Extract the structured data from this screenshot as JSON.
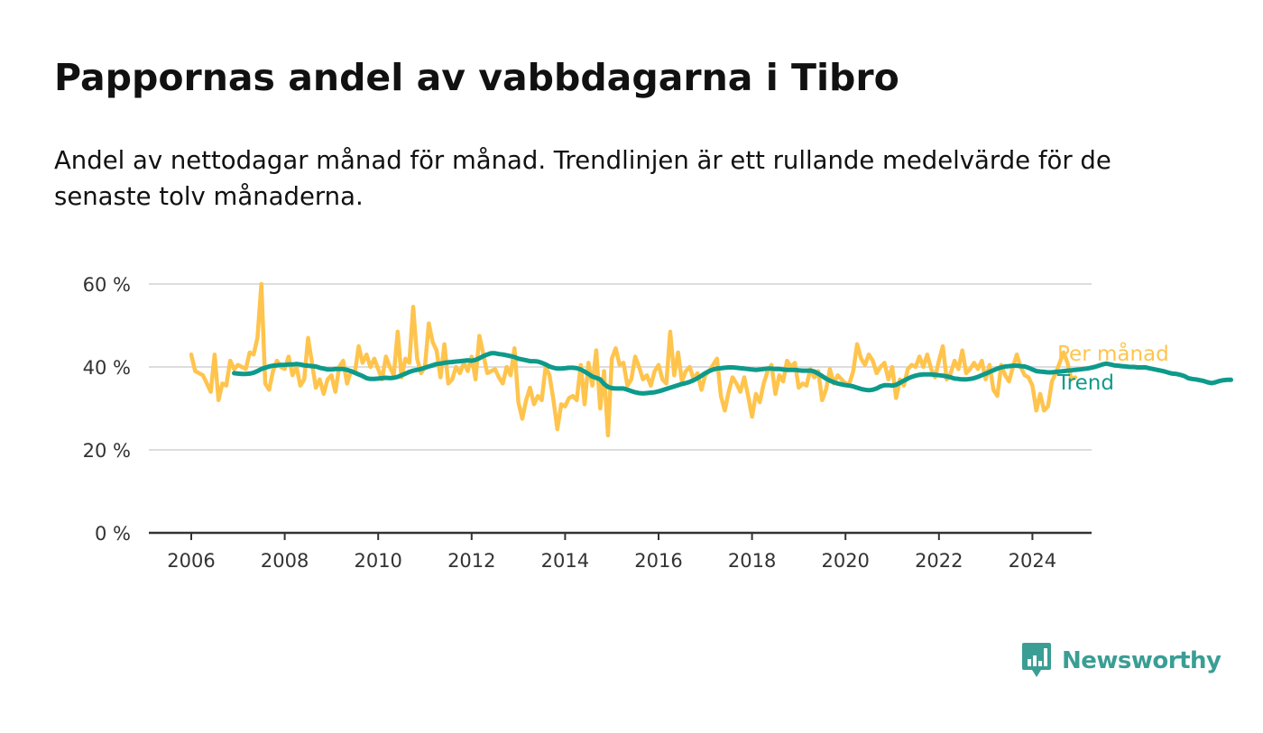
{
  "title": "Pappornas andel av vabbdagarna i Tibro",
  "subtitle": "Andel av nettodagar månad för månad. Trendlinjen är ett rullande medelvärde för de senaste tolv månaderna.",
  "brand": {
    "name": "Newsworthy",
    "icon": "newsworthy-logo-icon",
    "color": "#3a9e94"
  },
  "chart_data": {
    "type": "line",
    "ylim": [
      0,
      60
    ],
    "yticks": [
      0,
      20,
      40,
      60
    ],
    "ytick_labels": [
      "0 %",
      "20 %",
      "40 %",
      "60 %"
    ],
    "xlim": [
      2006,
      2025.3
    ],
    "xticks": [
      2006,
      2008,
      2010,
      2012,
      2014,
      2016,
      2018,
      2020,
      2022,
      2024
    ],
    "xtick_labels": [
      "2006",
      "2008",
      "2010",
      "2012",
      "2014",
      "2016",
      "2018",
      "2020",
      "2022",
      "2024"
    ],
    "grid": true,
    "legend": "end-of-line labels",
    "series": [
      {
        "name": "Per månad",
        "color": "#ffc44d",
        "start": "2006-01",
        "values": [
          43,
          39,
          38.5,
          38,
          36,
          34,
          43,
          32,
          36,
          35.5,
          41.5,
          39.5,
          40.5,
          40,
          39.5,
          43.5,
          43,
          47,
          60,
          36,
          34.5,
          39,
          41.5,
          40,
          39.5,
          42.5,
          38,
          40,
          35.5,
          37,
          47,
          41,
          35,
          37,
          33.5,
          37,
          38,
          34,
          40,
          41.5,
          36,
          39,
          38.5,
          45,
          41,
          43,
          40,
          42,
          39.5,
          37,
          42.5,
          40,
          38,
          48.5,
          37.5,
          42,
          41,
          54.5,
          42,
          38.5,
          40,
          50.5,
          46,
          44,
          37.5,
          45.5,
          36,
          37,
          40,
          38.5,
          41,
          39,
          42.5,
          37,
          47.5,
          43,
          38.5,
          39,
          39.5,
          37.5,
          36,
          40,
          38,
          44.5,
          31.5,
          27.5,
          32,
          35,
          31,
          33,
          32,
          40,
          38,
          32,
          25,
          31,
          30.5,
          32.5,
          33,
          32,
          40.5,
          31,
          41,
          35.5,
          44,
          30,
          39,
          23.5,
          42,
          44.5,
          40.5,
          41,
          35.5,
          37,
          42.5,
          40,
          37,
          38,
          35.5,
          39,
          40.5,
          37,
          36,
          48.5,
          38,
          43.5,
          36.5,
          39,
          40,
          37,
          38.5,
          34.5,
          38,
          39,
          40.5,
          42,
          33,
          29.5,
          34,
          37.5,
          36,
          34,
          37.5,
          33,
          28,
          33.5,
          31.5,
          36,
          39,
          40.5,
          33.5,
          38,
          36.5,
          41.5,
          40,
          41,
          35,
          36,
          35.5,
          39.5,
          37.5,
          39,
          32,
          34.5,
          39.5,
          36,
          38,
          37,
          36,
          36,
          39,
          45.5,
          42,
          40.5,
          43,
          41.5,
          38.5,
          40,
          41,
          37,
          40,
          32.5,
          37,
          35.5,
          39.5,
          40.5,
          40,
          42.5,
          40,
          43,
          39.5,
          37.5,
          41.5,
          45,
          37,
          38.5,
          41.5,
          39.5,
          44,
          38.5,
          39.5,
          41,
          39.5,
          41.5,
          37,
          40.5,
          34.5,
          33,
          40.5,
          38,
          36.5,
          40,
          43,
          40,
          38,
          37.5,
          35.5,
          29.5,
          33.5,
          29.5,
          30.5,
          36.5,
          38.5,
          41,
          43.5,
          41,
          37,
          37.5
        ]
      },
      {
        "name": "Trend",
        "color": "#0e9a8b",
        "start": "2006-12",
        "values": [
          38.5,
          38.4,
          38.3,
          38.3,
          38.4,
          38.6,
          39.0,
          39.5,
          39.8,
          40.1,
          40.3,
          40.4,
          40.5,
          40.5,
          40.6,
          40.6,
          40.7,
          40.6,
          40.4,
          40.3,
          40.2,
          40.1,
          39.8,
          39.6,
          39.4,
          39.4,
          39.5,
          39.5,
          39.5,
          39.3,
          39.0,
          38.6,
          38.2,
          37.8,
          37.3,
          37.1,
          37.1,
          37.2,
          37.3,
          37.4,
          37.3,
          37.4,
          37.6,
          38.0,
          38.4,
          38.8,
          39.1,
          39.3,
          39.5,
          39.8,
          40.1,
          40.4,
          40.7,
          40.8,
          41.0,
          41.1,
          41.2,
          41.3,
          41.4,
          41.5,
          41.6,
          41.5,
          41.7,
          42.1,
          42.6,
          43.0,
          43.3,
          43.3,
          43.1,
          43.0,
          42.8,
          42.6,
          42.4,
          42.0,
          41.8,
          41.6,
          41.4,
          41.4,
          41.3,
          41.0,
          40.6,
          40.1,
          39.8,
          39.6,
          39.6,
          39.7,
          39.8,
          39.8,
          39.7,
          39.4,
          38.9,
          38.3,
          37.7,
          37.4,
          37.0,
          35.9,
          35.2,
          34.9,
          34.8,
          34.8,
          34.8,
          34.5,
          34.2,
          33.9,
          33.7,
          33.6,
          33.7,
          33.8,
          33.9,
          34.1,
          34.4,
          34.7,
          35.0,
          35.3,
          35.6,
          35.9,
          36.1,
          36.4,
          36.8,
          37.3,
          37.9,
          38.5,
          39.0,
          39.4,
          39.6,
          39.7,
          39.8,
          39.9,
          39.9,
          39.8,
          39.7,
          39.6,
          39.5,
          39.4,
          39.3,
          39.4,
          39.5,
          39.6,
          39.6,
          39.5,
          39.5,
          39.4,
          39.3,
          39.3,
          39.3,
          39.2,
          39.1,
          39.1,
          39.1,
          38.9,
          38.4,
          37.8,
          37.2,
          36.7,
          36.3,
          36.0,
          35.8,
          35.6,
          35.5,
          35.3,
          35.0,
          34.7,
          34.5,
          34.4,
          34.5,
          34.8,
          35.3,
          35.6,
          35.6,
          35.5,
          35.7,
          36.2,
          36.7,
          37.2,
          37.6,
          37.9,
          38.1,
          38.2,
          38.2,
          38.2,
          38.1,
          38.0,
          37.9,
          37.7,
          37.5,
          37.2,
          37.1,
          37.0,
          37.0,
          37.1,
          37.3,
          37.6,
          38.0,
          38.4,
          38.8,
          39.2,
          39.6,
          39.9,
          40.1,
          40.2,
          40.3,
          40.3,
          40.2,
          40.1,
          39.8,
          39.4,
          39.0,
          38.9,
          38.8,
          38.7,
          38.7,
          38.8,
          38.9,
          39.0,
          39.1,
          39.2,
          39.3,
          39.4,
          39.5,
          39.6,
          39.8,
          40.0,
          40.3,
          40.6,
          40.8,
          40.6,
          40.4,
          40.3,
          40.2,
          40.1,
          40.0,
          40.0,
          39.9,
          39.9,
          39.9,
          39.7,
          39.5,
          39.3,
          39.1,
          38.9,
          38.6,
          38.4,
          38.3,
          38.1,
          37.8,
          37.3,
          37.1,
          37.0,
          36.8,
          36.6,
          36.3,
          36.1,
          36.3,
          36.6,
          36.8,
          36.9,
          36.9
        ]
      }
    ]
  }
}
